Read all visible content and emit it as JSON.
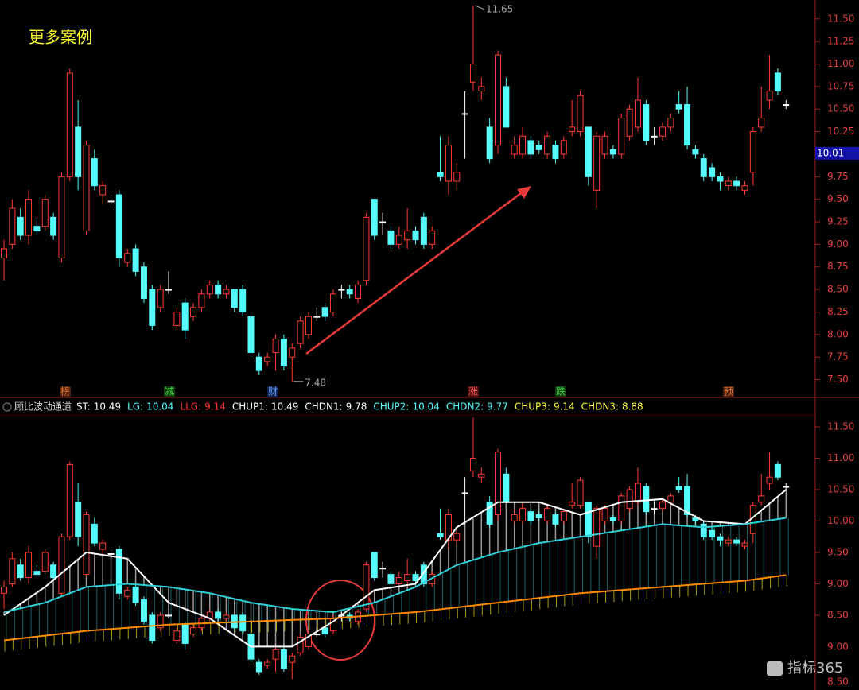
{
  "chart_data": [
    {
      "type": "candlestick",
      "title": "更多案例",
      "colors": {
        "up": "#ff3b30",
        "down": "#54fcfc",
        "flat": "#ffffff"
      },
      "ylim": [
        7.39,
        11.71
      ],
      "yticks": [
        {
          "value": 7.5,
          "label": "7.50"
        },
        {
          "value": 7.75,
          "label": "7.75"
        },
        {
          "value": 8,
          "label": "8.00"
        },
        {
          "value": 8.25,
          "label": "8.25"
        },
        {
          "value": 8.5,
          "label": "8.50"
        },
        {
          "value": 8.75,
          "label": "8.75"
        },
        {
          "value": 9,
          "label": "9.00"
        },
        {
          "value": 9.25,
          "label": "9.25"
        },
        {
          "value": 9.5,
          "label": "9.50"
        },
        {
          "value": 9.75,
          "label": "9.75"
        },
        {
          "value": 10,
          "label": "10.00"
        },
        {
          "value": 10.25,
          "label": "10.25"
        },
        {
          "value": 10.5,
          "label": "10.50"
        },
        {
          "value": 10.75,
          "label": "10.75"
        },
        {
          "value": 11,
          "label": "11.00"
        },
        {
          "value": 11.25,
          "label": "11.25"
        },
        {
          "value": 11.5,
          "label": "11.50"
        }
      ],
      "last_price": {
        "value": 10.01,
        "label": "10.01"
      },
      "annotations": [
        11.65,
        7.48
      ],
      "markers": [
        "榜",
        "减",
        "财",
        "涨",
        "跌",
        "预"
      ],
      "candles": [
        [
          8.85,
          9.05,
          8.6,
          8.95
        ],
        [
          9.0,
          9.5,
          8.95,
          9.4
        ],
        [
          9.3,
          9.4,
          9.05,
          9.1
        ],
        [
          9.1,
          9.6,
          9.0,
          9.5
        ],
        [
          9.2,
          9.3,
          9.1,
          9.15
        ],
        [
          9.2,
          9.55,
          9.15,
          9.5
        ],
        [
          9.3,
          9.35,
          9.05,
          9.1
        ],
        [
          8.85,
          9.8,
          8.8,
          9.75
        ],
        [
          9.75,
          10.95,
          9.7,
          10.9
        ],
        [
          10.3,
          10.6,
          9.6,
          9.75
        ],
        [
          9.15,
          10.15,
          9.1,
          10.1
        ],
        [
          9.95,
          10.05,
          9.6,
          9.65
        ],
        [
          9.55,
          9.7,
          9.45,
          9.65
        ],
        [
          9.48,
          9.55,
          9.4,
          9.48
        ],
        [
          9.55,
          9.6,
          8.75,
          8.85
        ],
        [
          8.8,
          8.95,
          8.75,
          8.9
        ],
        [
          8.95,
          9.0,
          8.65,
          8.7
        ],
        [
          8.75,
          8.8,
          8.35,
          8.4
        ],
        [
          8.5,
          8.55,
          8.05,
          8.1
        ],
        [
          8.3,
          8.55,
          8.25,
          8.5
        ],
        [
          8.5,
          8.7,
          8.45,
          8.5
        ],
        [
          8.1,
          8.3,
          8.05,
          8.25
        ],
        [
          8.35,
          8.4,
          7.95,
          8.05
        ],
        [
          8.2,
          8.35,
          8.15,
          8.3
        ],
        [
          8.3,
          8.5,
          8.25,
          8.45
        ],
        [
          8.45,
          8.6,
          8.4,
          8.55
        ],
        [
          8.55,
          8.6,
          8.4,
          8.45
        ],
        [
          8.45,
          8.55,
          8.4,
          8.5
        ],
        [
          8.5,
          8.5,
          8.25,
          8.3
        ],
        [
          8.5,
          8.55,
          8.2,
          8.25
        ],
        [
          8.2,
          8.25,
          7.75,
          7.8
        ],
        [
          7.75,
          7.8,
          7.55,
          7.6
        ],
        [
          7.7,
          7.8,
          7.65,
          7.75
        ],
        [
          7.8,
          8.0,
          7.6,
          7.95
        ],
        [
          7.95,
          8.0,
          7.6,
          7.65
        ],
        [
          7.75,
          7.9,
          7.48,
          7.85
        ],
        [
          7.9,
          8.2,
          7.85,
          8.15
        ],
        [
          8.0,
          8.25,
          7.95,
          8.2
        ],
        [
          8.2,
          8.3,
          8.15,
          8.2
        ],
        [
          8.3,
          8.35,
          8.15,
          8.2
        ],
        [
          8.25,
          8.5,
          8.2,
          8.45
        ],
        [
          8.5,
          8.55,
          8.4,
          8.5
        ],
        [
          8.5,
          8.55,
          8.4,
          8.45
        ],
        [
          8.4,
          8.6,
          8.35,
          8.55
        ],
        [
          8.6,
          9.35,
          8.55,
          9.3
        ],
        [
          9.5,
          9.5,
          9.05,
          9.1
        ],
        [
          9.25,
          9.35,
          9.1,
          9.25
        ],
        [
          9.15,
          9.2,
          8.95,
          9.0
        ],
        [
          9.0,
          9.2,
          8.95,
          9.1
        ],
        [
          9.05,
          9.4,
          8.95,
          9.15
        ],
        [
          9.15,
          9.2,
          9.0,
          9.05
        ],
        [
          9.3,
          9.35,
          8.95,
          9.0
        ],
        [
          9.0,
          9.2,
          8.95,
          9.15
        ],
        [
          9.8,
          10.2,
          9.7,
          9.75
        ],
        [
          9.7,
          10.2,
          9.55,
          10.1
        ],
        [
          9.7,
          9.9,
          9.6,
          9.8
        ],
        [
          10.45,
          10.7,
          9.95,
          10.45
        ],
        [
          10.8,
          11.65,
          10.7,
          11.0
        ],
        [
          10.7,
          10.85,
          10.6,
          10.75
        ],
        [
          10.3,
          10.4,
          9.9,
          9.95
        ],
        [
          10.1,
          11.15,
          10.0,
          11.1
        ],
        [
          10.75,
          10.85,
          10.3,
          10.3
        ],
        [
          10.0,
          10.2,
          9.95,
          10.1
        ],
        [
          10.0,
          10.3,
          9.95,
          10.2
        ],
        [
          10.15,
          10.2,
          9.95,
          10.0
        ],
        [
          10.1,
          10.15,
          10.0,
          10.05
        ],
        [
          10.0,
          10.25,
          9.95,
          10.2
        ],
        [
          10.1,
          10.15,
          9.9,
          9.95
        ],
        [
          10.0,
          10.2,
          9.95,
          10.15
        ],
        [
          10.25,
          10.6,
          10.2,
          10.3
        ],
        [
          10.25,
          10.7,
          10.2,
          10.65
        ],
        [
          10.3,
          10.3,
          9.65,
          9.75
        ],
        [
          9.6,
          10.25,
          9.4,
          10.2
        ],
        [
          10.0,
          10.25,
          9.95,
          10.2
        ],
        [
          10.05,
          10.1,
          9.95,
          10.0
        ],
        [
          10.0,
          10.45,
          9.95,
          10.4
        ],
        [
          10.2,
          10.55,
          10.15,
          10.5
        ],
        [
          10.3,
          10.85,
          10.25,
          10.6
        ],
        [
          10.55,
          10.6,
          10.1,
          10.15
        ],
        [
          10.2,
          10.3,
          10.1,
          10.2
        ],
        [
          10.2,
          10.35,
          10.15,
          10.3
        ],
        [
          10.3,
          10.45,
          10.25,
          10.4
        ],
        [
          10.55,
          10.7,
          10.45,
          10.5
        ],
        [
          10.55,
          10.75,
          10.05,
          10.1
        ],
        [
          10.05,
          10.1,
          9.95,
          10.0
        ],
        [
          9.95,
          10.0,
          9.7,
          9.75
        ],
        [
          9.85,
          9.9,
          9.7,
          9.75
        ],
        [
          9.75,
          9.8,
          9.6,
          9.7
        ],
        [
          9.65,
          9.75,
          9.6,
          9.7
        ],
        [
          9.7,
          9.75,
          9.6,
          9.65
        ],
        [
          9.6,
          9.7,
          9.55,
          9.65
        ],
        [
          9.8,
          10.3,
          9.65,
          10.25
        ],
        [
          10.3,
          10.75,
          10.25,
          10.4
        ],
        [
          10.6,
          11.1,
          10.5,
          10.7
        ],
        [
          10.9,
          10.95,
          10.65,
          10.7
        ],
        [
          10.55,
          10.6,
          10.5,
          10.55
        ]
      ]
    },
    {
      "type": "channel",
      "name": "顾比波动通道",
      "legend": [
        {
          "name": "ST:",
          "value": 10.49,
          "color": "#ffffff"
        },
        {
          "name": "LG:",
          "value": 10.04,
          "color": "#54fcfc"
        },
        {
          "name": "LLG:",
          "value": 9.14,
          "color": "#ff3030"
        },
        {
          "name": "CHUP1:",
          "value": 10.49,
          "color": "#ffffff"
        },
        {
          "name": "CHDN1:",
          "value": 9.78,
          "color": "#ffffff"
        },
        {
          "name": "CHUP2:",
          "value": 10.04,
          "color": "#54fcfc"
        },
        {
          "name": "CHDN2:",
          "value": 9.77,
          "color": "#54fcfc"
        },
        {
          "name": "CHUP3:",
          "value": 9.14,
          "color": "#ffff40"
        },
        {
          "name": "CHDN3:",
          "value": 8.88,
          "color": "#ffff40"
        }
      ],
      "ylim": [
        7.41,
        11.69
      ],
      "yticks": [
        {
          "value": 8.5,
          "label": "8.50"
        },
        {
          "value": 9,
          "label": "9.00"
        },
        {
          "value": 9.5,
          "label": "9.50"
        },
        {
          "value": 10,
          "label": "10.00"
        },
        {
          "value": 10.5,
          "label": "10.50"
        },
        {
          "value": 11,
          "label": "11.00"
        },
        {
          "value": 11.5,
          "label": "11.50"
        }
      ],
      "extra_labels": [
        "9.00",
        "8.50"
      ],
      "lines": [
        {
          "color": "#ffffff",
          "x": [
            0,
            5,
            10,
            15,
            20,
            25,
            30,
            35,
            40,
            45,
            50,
            55,
            60,
            65,
            70,
            75,
            80,
            85,
            90,
            95
          ],
          "values": [
            8.5,
            8.95,
            9.5,
            9.4,
            8.7,
            8.45,
            8.0,
            8.0,
            8.4,
            8.9,
            9.0,
            9.9,
            10.3,
            10.3,
            10.1,
            10.3,
            10.35,
            10.0,
            9.95,
            10.5
          ]
        },
        {
          "color": "#30d0d8",
          "x": [
            0,
            5,
            10,
            15,
            20,
            25,
            30,
            35,
            40,
            45,
            50,
            55,
            60,
            65,
            70,
            75,
            80,
            85,
            90,
            95
          ],
          "values": [
            8.55,
            8.7,
            8.95,
            9.0,
            8.95,
            8.85,
            8.7,
            8.6,
            8.55,
            8.7,
            8.95,
            9.3,
            9.5,
            9.65,
            9.75,
            9.85,
            9.95,
            9.9,
            9.95,
            10.05
          ]
        },
        {
          "color": "#ff8c00",
          "x": [
            0,
            10,
            20,
            30,
            40,
            50,
            60,
            70,
            80,
            90,
            95
          ],
          "values": [
            8.1,
            8.25,
            8.35,
            8.4,
            8.45,
            8.55,
            8.7,
            8.85,
            8.95,
            9.05,
            9.14
          ]
        }
      ]
    }
  ],
  "watermark": "指标365"
}
